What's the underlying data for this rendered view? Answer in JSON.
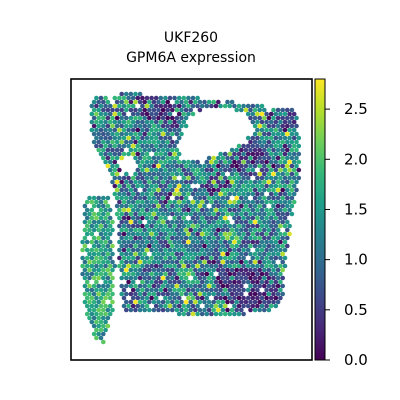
{
  "chart_data": {
    "type": "scatter",
    "title_lines": [
      "UKF260",
      "GPM6A expression"
    ],
    "xlabel": "",
    "ylabel": "",
    "colormap": "viridis",
    "colorbar": {
      "range": [
        0.0,
        2.8
      ],
      "ticks": [
        0.0,
        0.5,
        1.0,
        1.5,
        2.0,
        2.5
      ],
      "tick_labels": [
        "0.0",
        "0.5",
        "1.0",
        "1.5",
        "2.0",
        "2.5"
      ]
    },
    "value_range": [
      0.0,
      2.8
    ],
    "typical_value": 1.3,
    "regions": [
      {
        "region": "main tissue block",
        "typical_value": 1.3,
        "range": [
          0.0,
          2.8
        ]
      },
      {
        "region": "left strip",
        "typical_value": 1.6,
        "range": [
          0.8,
          2.6
        ]
      },
      {
        "region": "low-expression patches (upper-middle, top-right, lower-right)",
        "typical_value": 0.2,
        "range": [
          0.0,
          0.8
        ]
      }
    ],
    "grid": false,
    "legend": "colorbar-right"
  },
  "colors": {
    "viridis_stops": [
      "#440154",
      "#482878",
      "#3e4989",
      "#31688e",
      "#26828e",
      "#1f9e89",
      "#35b779",
      "#6ece58",
      "#b5de2b",
      "#fde725"
    ]
  }
}
